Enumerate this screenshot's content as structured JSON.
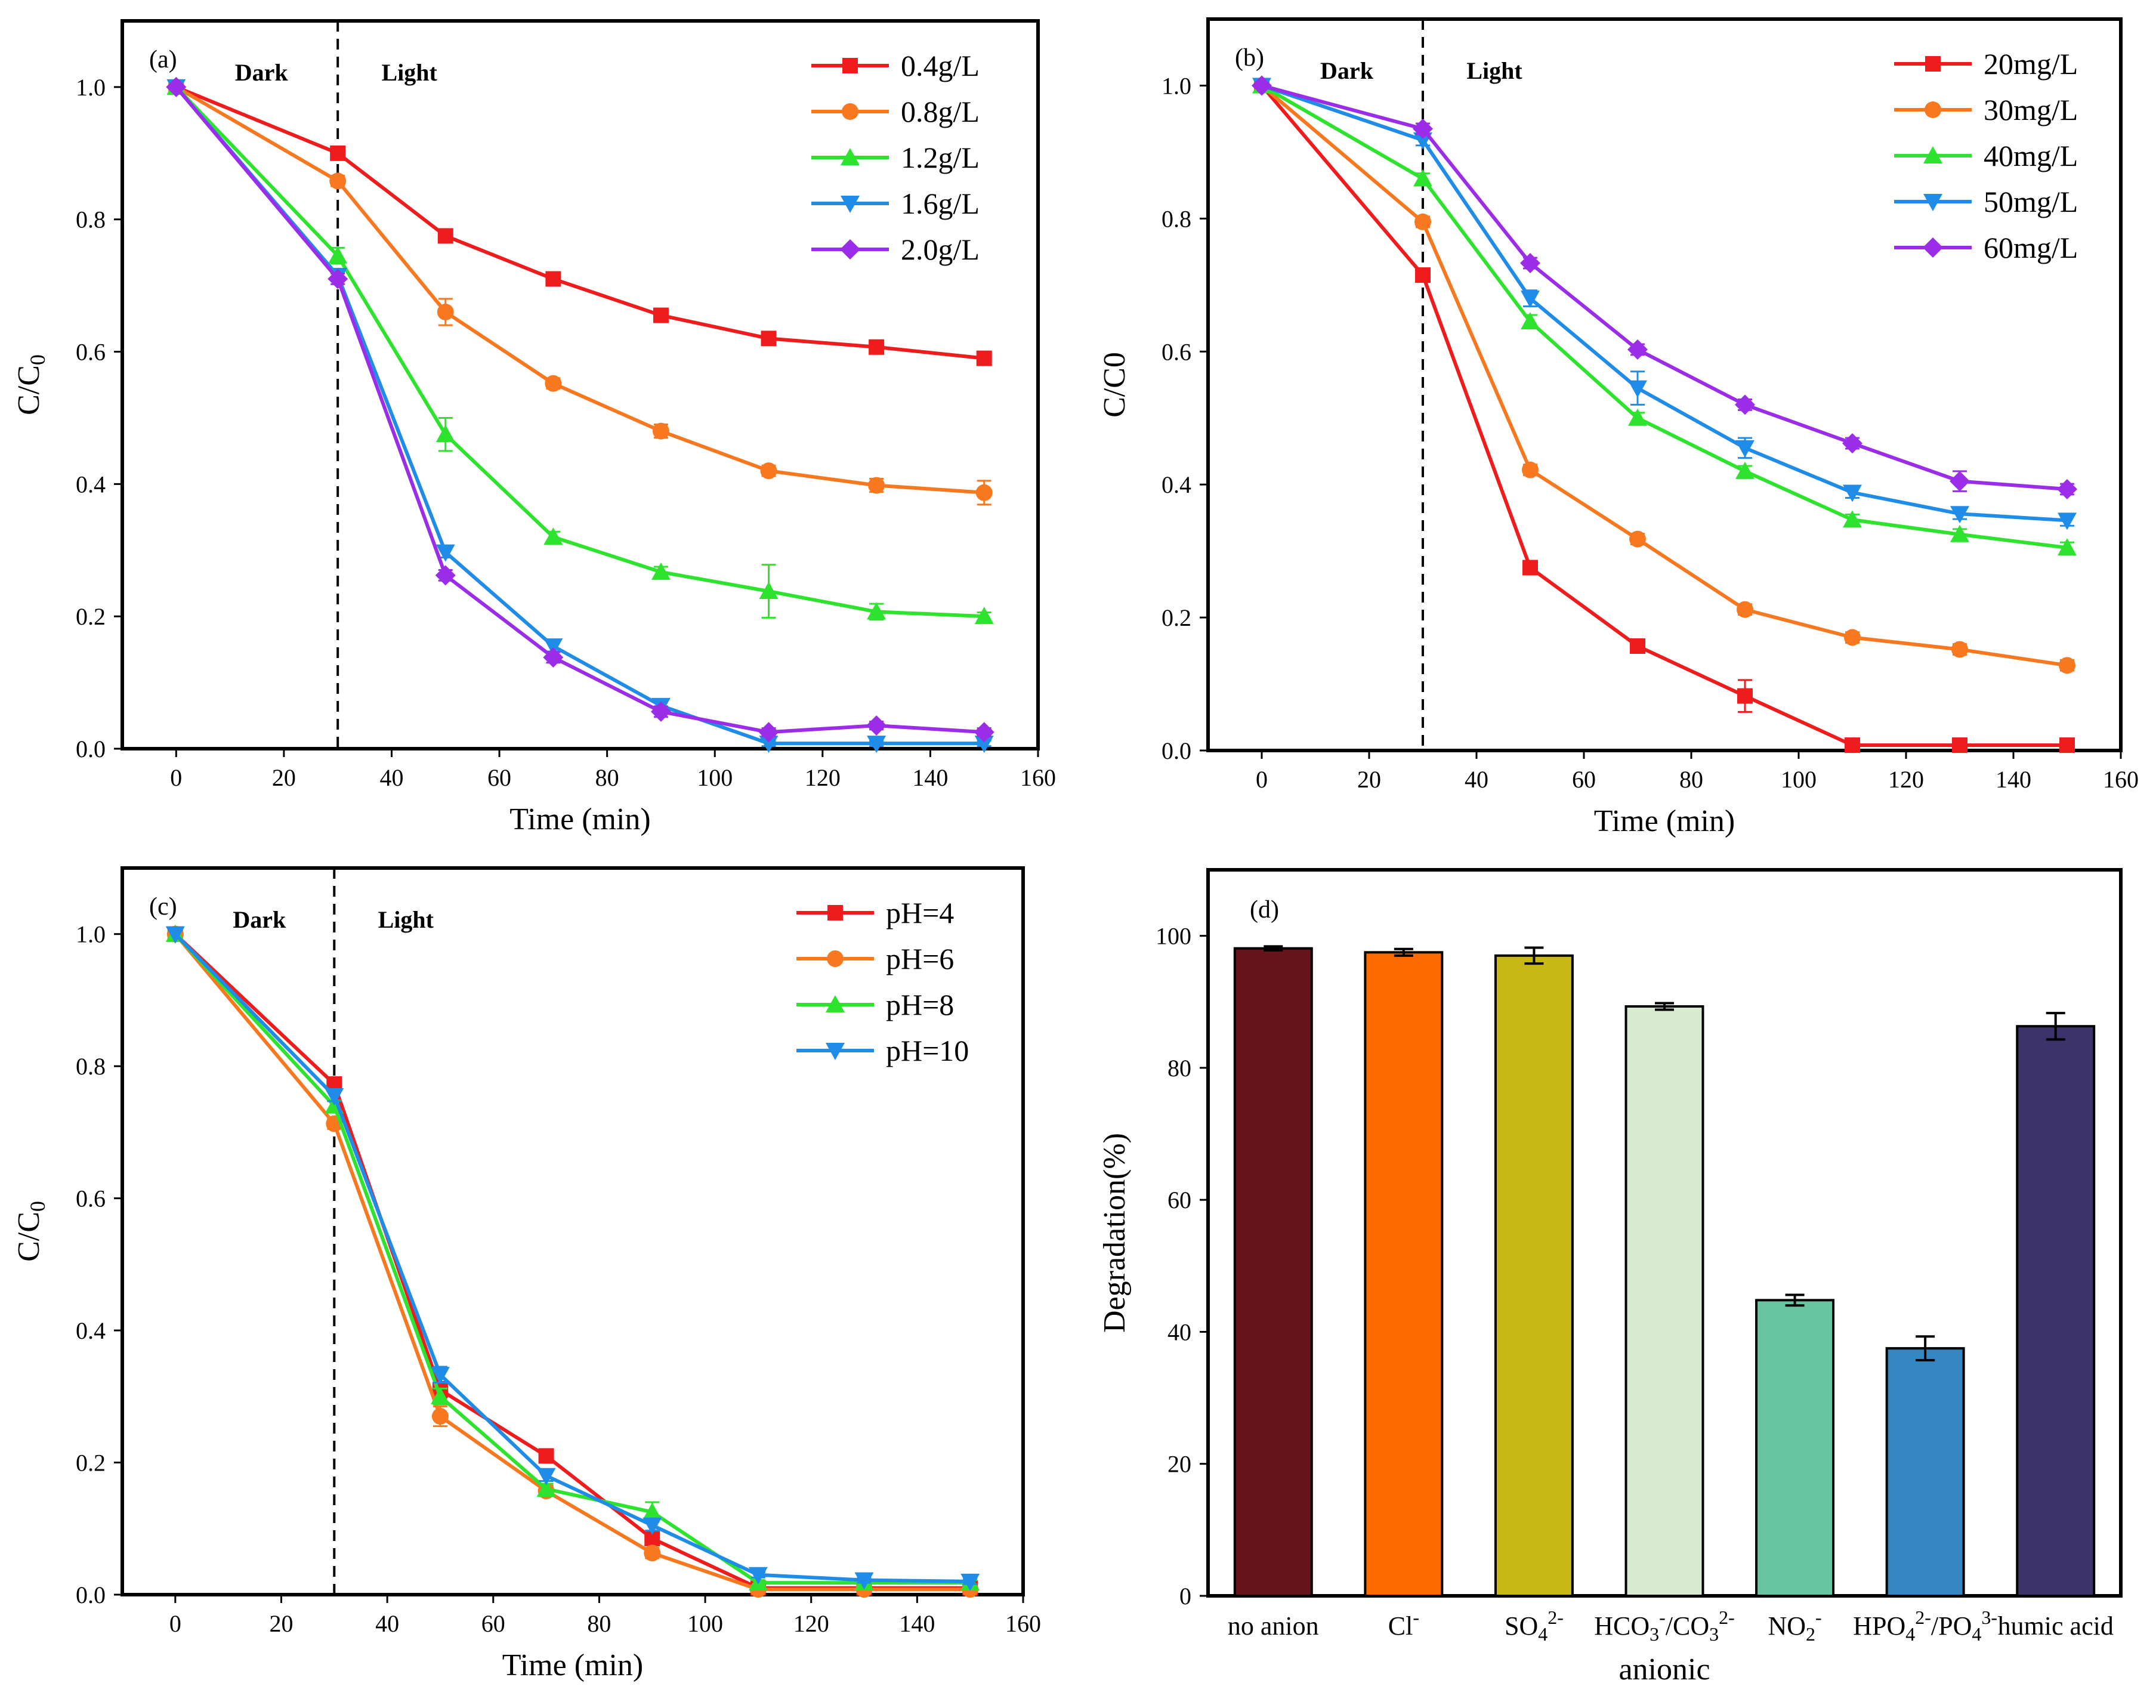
{
  "chart_data": [
    {
      "type": "line",
      "panel_label": "(a)",
      "dark_label": "Dark",
      "light_label": "Light",
      "xlabel": "Time (min)",
      "ylabel": "C/C",
      "ylabel_sub": "0",
      "xlim": [
        -10,
        160
      ],
      "ylim": [
        0,
        1.1
      ],
      "xticks": [
        0,
        20,
        40,
        60,
        80,
        100,
        120,
        140,
        160
      ],
      "yticks": [
        0.0,
        0.2,
        0.4,
        0.6,
        0.8,
        1.0
      ],
      "divider_x": 30,
      "legend_position": "top-right",
      "x": [
        0,
        30,
        50,
        70,
        90,
        110,
        130,
        150
      ],
      "series": [
        {
          "name": "0.4g/L",
          "color": "#ee1c1c",
          "marker": "square",
          "values": [
            1.0,
            0.9,
            0.775,
            0.71,
            0.655,
            0.62,
            0.607,
            0.59
          ],
          "errors": [
            0,
            0.008,
            0.008,
            0.006,
            0.006,
            0.008,
            0.008,
            0.01
          ]
        },
        {
          "name": "0.8g/L",
          "color": "#f7781e",
          "marker": "circle",
          "values": [
            1.0,
            0.858,
            0.66,
            0.552,
            0.48,
            0.42,
            0.398,
            0.387
          ],
          "errors": [
            0,
            0.008,
            0.02,
            0.008,
            0.01,
            0.008,
            0.01,
            0.018
          ]
        },
        {
          "name": "1.2g/L",
          "color": "#2ee32e",
          "marker": "triangle-up",
          "values": [
            1.0,
            0.745,
            0.475,
            0.32,
            0.267,
            0.238,
            0.207,
            0.2
          ],
          "errors": [
            0,
            0.012,
            0.025,
            0.008,
            0.008,
            0.04,
            0.012,
            0.006
          ]
        },
        {
          "name": "1.6g/L",
          "color": "#1f8ce8",
          "marker": "triangle-down",
          "values": [
            1.0,
            0.715,
            0.297,
            0.155,
            0.065,
            0.008,
            0.008,
            0.008
          ],
          "errors": [
            0,
            0.008,
            0.008,
            0.008,
            0.008,
            0.004,
            0.004,
            0.004
          ]
        },
        {
          "name": "2.0g/L",
          "color": "#9b2ce8",
          "marker": "diamond",
          "values": [
            1.0,
            0.71,
            0.262,
            0.138,
            0.056,
            0.025,
            0.035,
            0.025
          ],
          "errors": [
            0,
            0.008,
            0.008,
            0.008,
            0.008,
            0.006,
            0.006,
            0.006
          ]
        }
      ]
    },
    {
      "type": "line",
      "panel_label": "(b)",
      "dark_label": "Dark",
      "light_label": "Light",
      "xlabel": "Time (min)",
      "ylabel": "C/C0",
      "ylabel_sub": "",
      "xlim": [
        -10,
        160
      ],
      "ylim": [
        0,
        1.1
      ],
      "xticks": [
        0,
        20,
        40,
        60,
        80,
        100,
        120,
        140,
        160
      ],
      "yticks": [
        0.0,
        0.2,
        0.4,
        0.6,
        0.8,
        1.0
      ],
      "divider_x": 30,
      "legend_position": "top-right",
      "x": [
        0,
        30,
        50,
        70,
        90,
        110,
        130,
        150
      ],
      "series": [
        {
          "name": "20mg/L",
          "color": "#ee1c1c",
          "marker": "square",
          "values": [
            1.0,
            0.715,
            0.275,
            0.157,
            0.082,
            0.008,
            0.008,
            0.008
          ],
          "errors": [
            0,
            0.008,
            0.008,
            0.008,
            0.024,
            0.004,
            0.004,
            0.004
          ]
        },
        {
          "name": "30mg/L",
          "color": "#f7781e",
          "marker": "circle",
          "values": [
            1.0,
            0.795,
            0.422,
            0.318,
            0.212,
            0.17,
            0.152,
            0.128
          ],
          "errors": [
            0,
            0.008,
            0.008,
            0.008,
            0.008,
            0.008,
            0.008,
            0.008
          ]
        },
        {
          "name": "40mg/L",
          "color": "#2ee32e",
          "marker": "triangle-up",
          "values": [
            1.0,
            0.86,
            0.645,
            0.5,
            0.42,
            0.347,
            0.325,
            0.305
          ],
          "errors": [
            0,
            0.008,
            0.01,
            0.008,
            0.008,
            0.008,
            0.008,
            0.008
          ]
        },
        {
          "name": "50mg/L",
          "color": "#1f8ce8",
          "marker": "triangle-down",
          "values": [
            1.0,
            0.918,
            0.68,
            0.545,
            0.455,
            0.388,
            0.356,
            0.346
          ],
          "errors": [
            0,
            0.008,
            0.012,
            0.025,
            0.015,
            0.008,
            0.008,
            0.008
          ]
        },
        {
          "name": "60mg/L",
          "color": "#9b2ce8",
          "marker": "diamond",
          "values": [
            1.0,
            0.935,
            0.733,
            0.603,
            0.52,
            0.462,
            0.405,
            0.393
          ],
          "errors": [
            0,
            0.008,
            0.008,
            0.008,
            0.008,
            0.008,
            0.015,
            0.008
          ]
        }
      ]
    },
    {
      "type": "line",
      "panel_label": "(c)",
      "dark_label": "Dark",
      "light_label": "Light",
      "xlabel": "Time (min)",
      "ylabel": "C/C",
      "ylabel_sub": "0",
      "xlim": [
        -10,
        160
      ],
      "ylim": [
        0,
        1.1
      ],
      "xticks": [
        0,
        20,
        40,
        60,
        80,
        100,
        120,
        140,
        160
      ],
      "yticks": [
        0.0,
        0.2,
        0.4,
        0.6,
        0.8,
        1.0
      ],
      "divider_x": 30,
      "legend_position": "top-right",
      "x": [
        0,
        30,
        50,
        70,
        90,
        110,
        130,
        150
      ],
      "series": [
        {
          "name": "pH=4",
          "color": "#ee1c1c",
          "marker": "square",
          "values": [
            1.0,
            0.773,
            0.31,
            0.21,
            0.085,
            0.01,
            0.01,
            0.01
          ],
          "errors": [
            0,
            0.008,
            0.012,
            0.008,
            0.008,
            0.004,
            0.004,
            0.004
          ]
        },
        {
          "name": "pH=6",
          "color": "#f7781e",
          "marker": "circle",
          "values": [
            1.0,
            0.713,
            0.27,
            0.157,
            0.063,
            0.008,
            0.008,
            0.008
          ],
          "errors": [
            0,
            0.008,
            0.015,
            0.008,
            0.008,
            0.004,
            0.004,
            0.004
          ]
        },
        {
          "name": "pH=8",
          "color": "#2ee32e",
          "marker": "triangle-up",
          "values": [
            1.0,
            0.74,
            0.3,
            0.16,
            0.125,
            0.018,
            0.018,
            0.018
          ],
          "errors": [
            0,
            0.008,
            0.012,
            0.008,
            0.015,
            0.004,
            0.004,
            0.004
          ]
        },
        {
          "name": "pH=10",
          "color": "#1f8ce8",
          "marker": "triangle-down",
          "values": [
            1.0,
            0.755,
            0.333,
            0.18,
            0.105,
            0.03,
            0.022,
            0.02
          ],
          "errors": [
            0,
            0.008,
            0.012,
            0.008,
            0.008,
            0.004,
            0.004,
            0.004
          ]
        }
      ]
    },
    {
      "type": "bar",
      "panel_label": "(d)",
      "xlabel": "anionic",
      "ylabel": "Degradation(%)",
      "ylim": [
        0,
        110
      ],
      "yticks": [
        0,
        20,
        40,
        60,
        80,
        100
      ],
      "categories": [
        {
          "parts": [
            {
              "t": "no anion"
            }
          ]
        },
        {
          "parts": [
            {
              "t": "Cl"
            },
            {
              "t": "-",
              "s": "sup"
            }
          ]
        },
        {
          "parts": [
            {
              "t": "SO"
            },
            {
              "t": "4",
              "s": "sub"
            },
            {
              "t": "2-",
              "s": "sup"
            }
          ]
        },
        {
          "parts": [
            {
              "t": "HCO"
            },
            {
              "t": "3",
              "s": "sub"
            },
            {
              "t": "-",
              "s": "sup"
            },
            {
              "t": "/CO"
            },
            {
              "t": "3",
              "s": "sub"
            },
            {
              "t": "2-",
              "s": "sup"
            }
          ]
        },
        {
          "parts": [
            {
              "t": "NO"
            },
            {
              "t": "2",
              "s": "sub"
            },
            {
              "t": "-",
              "s": "sup"
            }
          ]
        },
        {
          "parts": [
            {
              "t": "HPO"
            },
            {
              "t": "4",
              "s": "sub"
            },
            {
              "t": "2-",
              "s": "sup"
            },
            {
              "t": "/PO"
            },
            {
              "t": "4",
              "s": "sub"
            },
            {
              "t": "3-",
              "s": "sup"
            }
          ]
        },
        {
          "parts": [
            {
              "t": "humic acid"
            }
          ]
        }
      ],
      "values": [
        98.1,
        97.5,
        97.0,
        89.3,
        44.8,
        37.5,
        86.3
      ],
      "errors": [
        0.3,
        0.5,
        1.2,
        0.5,
        0.8,
        1.8,
        2.0
      ],
      "colors": [
        "#66141a",
        "#ff6a00",
        "#c8b816",
        "#d8ebcf",
        "#69c4a3",
        "#3386c0",
        "#3b336a"
      ]
    }
  ]
}
